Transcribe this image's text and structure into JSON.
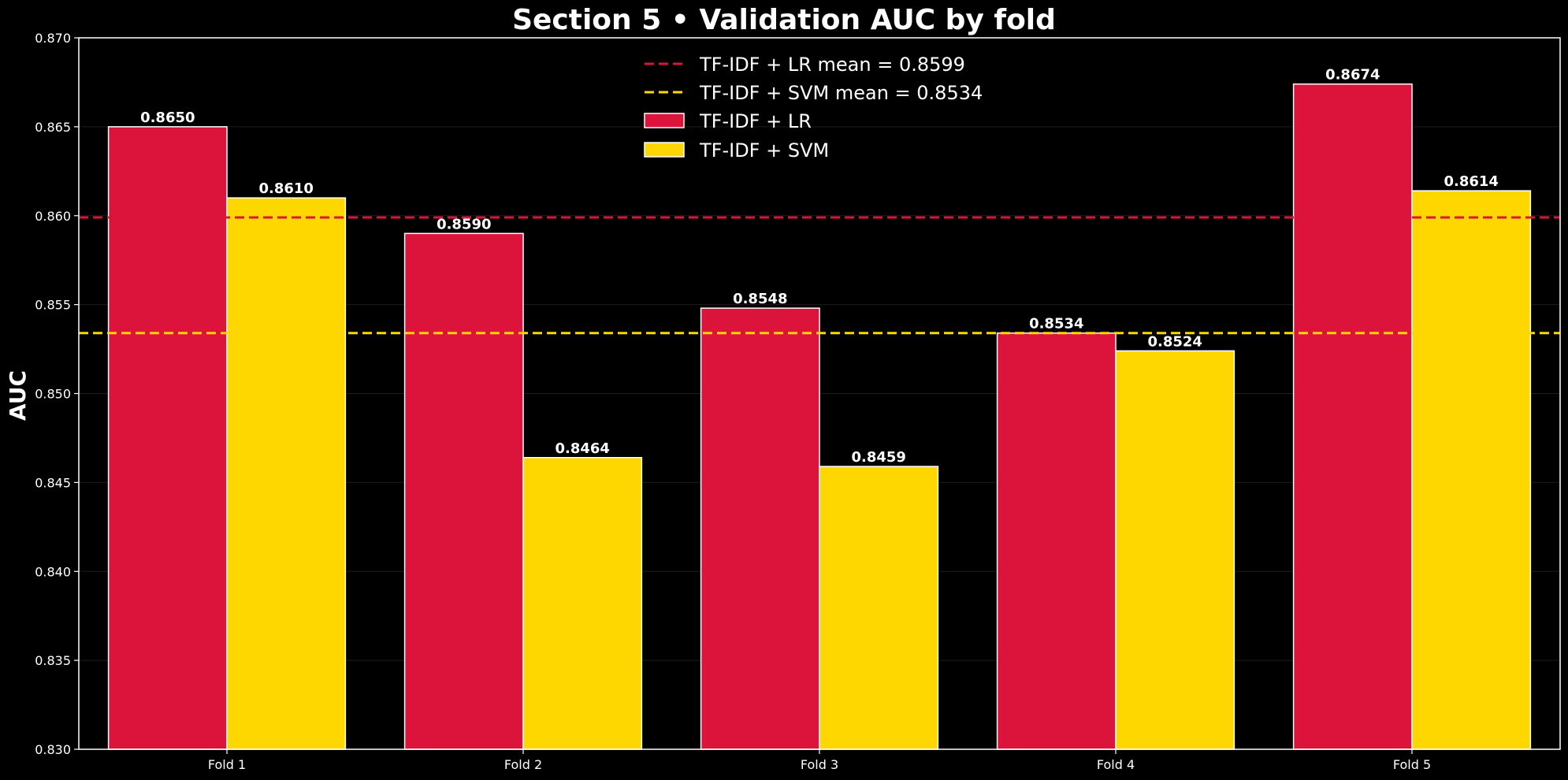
{
  "chart_data": {
    "type": "bar",
    "title": "Section 5 • Validation AUC by fold",
    "xlabel": "",
    "ylabel": "AUC",
    "ylim": [
      0.83,
      0.87
    ],
    "yticks": [
      "0.830",
      "0.835",
      "0.840",
      "0.845",
      "0.850",
      "0.855",
      "0.860",
      "0.865",
      "0.870"
    ],
    "categories": [
      "Fold 1",
      "Fold 2",
      "Fold 3",
      "Fold 4",
      "Fold 5"
    ],
    "grid": true,
    "legend_position": "top-center",
    "series": [
      {
        "name": "TF-IDF + LR",
        "color": "#dc143c",
        "values": [
          0.865,
          0.859,
          0.8548,
          0.8534,
          0.8674
        ],
        "labels": [
          "0.8650",
          "0.8590",
          "0.8548",
          "0.8534",
          "0.8674"
        ]
      },
      {
        "name": "TF-IDF + SVM",
        "color": "#ffd700",
        "values": [
          0.861,
          0.8464,
          0.8459,
          0.8524,
          0.8614
        ],
        "labels": [
          "0.8610",
          "0.8464",
          "0.8459",
          "0.8524",
          "0.8614"
        ]
      }
    ],
    "mean_lines": [
      {
        "name": "TF-IDF + LR mean = 0.8599",
        "value": 0.8599,
        "color": "#dc143c"
      },
      {
        "name": "TF-IDF + SVM mean = 0.8534",
        "value": 0.8534,
        "color": "#ffd700"
      }
    ]
  }
}
